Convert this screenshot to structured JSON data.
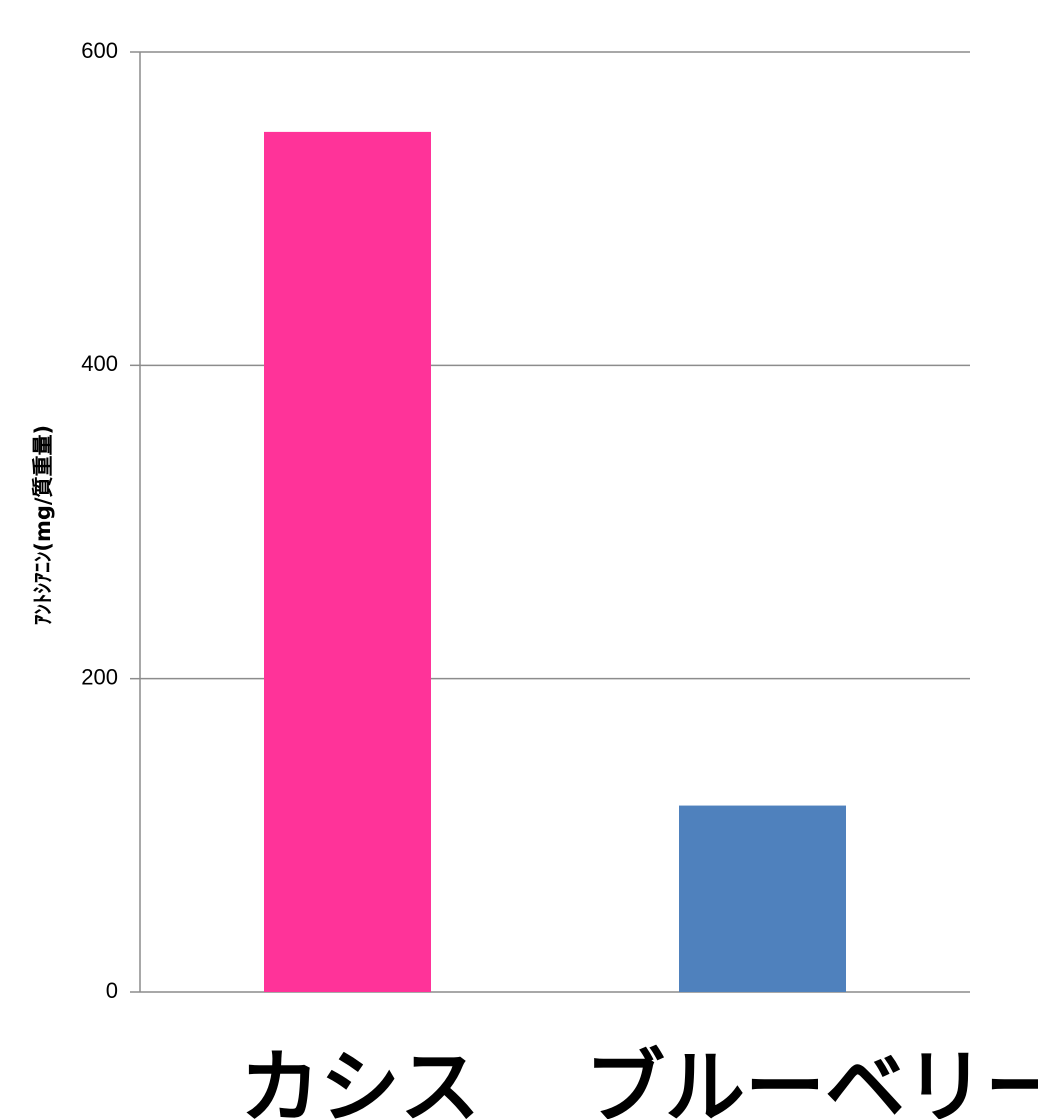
{
  "chart_data": {
    "type": "bar",
    "categories": [
      "カシス",
      "ブルーベリー"
    ],
    "series": [
      {
        "values": [
          549,
          119
        ],
        "colors": [
          "#FF3399",
          "#4F81BD"
        ]
      }
    ],
    "title": "",
    "xlabel": "",
    "ylabel": "ｱﾝﾄｼｱﾆﾝ(mg/質重量)",
    "ylim": [
      0,
      600
    ],
    "yticks": [
      0,
      200,
      400,
      600
    ],
    "ytick_labels": [
      "0",
      "200",
      "400",
      "600"
    ],
    "grid": true,
    "gridline_color": "#8C8C8C",
    "legend": "none"
  }
}
